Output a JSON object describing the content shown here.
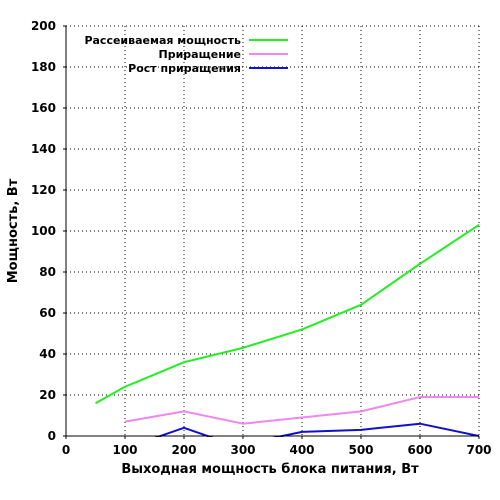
{
  "chart_data": {
    "type": "line",
    "xlabel": "Выходная мощность блока питания, Вт",
    "ylabel": "Мощность, Вт",
    "xlim": [
      0,
      700
    ],
    "ylim": [
      0,
      200
    ],
    "xticks": [
      0,
      100,
      200,
      300,
      400,
      500,
      600,
      700
    ],
    "yticks": [
      0,
      20,
      40,
      60,
      80,
      100,
      120,
      140,
      160,
      180,
      200
    ],
    "grid": true,
    "legend_position": "top-left",
    "series": [
      {
        "name": "Рассеиваемая мощность",
        "color": "#22ee22",
        "x": [
          50,
          100,
          200,
          300,
          400,
          500,
          600,
          700
        ],
        "y": [
          16,
          24,
          36,
          43,
          52,
          64,
          84,
          103
        ]
      },
      {
        "name": "Приращение",
        "color": "#ee88ee",
        "x": [
          100,
          200,
          300,
          400,
          500,
          600,
          700
        ],
        "y": [
          7,
          12,
          6,
          9,
          12,
          19,
          19
        ]
      },
      {
        "name": "Рост приращения",
        "color": "#1111cc",
        "x": [
          150,
          200,
          250,
          350,
          400,
          500,
          600,
          700
        ],
        "y": [
          -1,
          4,
          -1,
          -1,
          2,
          3,
          6,
          0
        ]
      }
    ]
  }
}
